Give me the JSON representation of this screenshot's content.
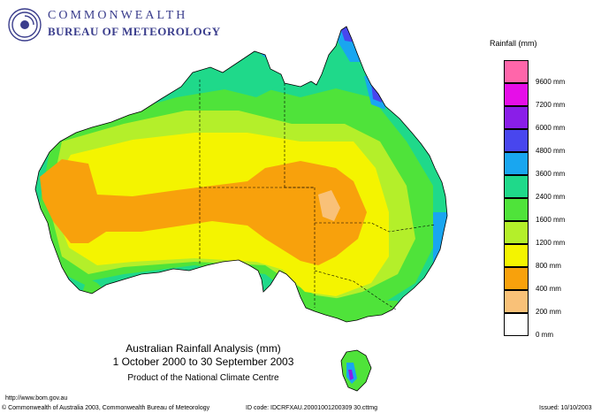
{
  "header": {
    "org_line1": "COMMONWEALTH",
    "org_line2": "BUREAU OF METEOROLOGY",
    "logo_icon": "bom-swirl-logo-icon"
  },
  "map": {
    "title_line1": "Australian Rainfall Analysis (mm)",
    "title_line2": "1 October 2000 to 30 September 2003",
    "credit": "Product of the National Climate Centre",
    "colors": {
      "ocean": "#ffffff",
      "border": "#000000",
      "r0": "#ffffff",
      "r200": "#f9c178",
      "r400": "#f8a10c",
      "r800": "#f4f400",
      "r1200": "#b4ef2a",
      "r1600": "#4fe33a",
      "r2400": "#1fd98a",
      "r3600": "#19a6f0",
      "r4800": "#4846ee",
      "r6000": "#8a1ee8",
      "r7200": "#e60ee8",
      "r9600": "#ff66aa"
    }
  },
  "legend": {
    "title": "Rainfall (mm)",
    "items": [
      {
        "label": "9600 mm",
        "color": "#ff66aa"
      },
      {
        "label": "7200 mm",
        "color": "#e60ee8"
      },
      {
        "label": "6000 mm",
        "color": "#8a1ee8"
      },
      {
        "label": "4800 mm",
        "color": "#4846ee"
      },
      {
        "label": "3600 mm",
        "color": "#19a6f0"
      },
      {
        "label": "2400 mm",
        "color": "#1fd98a"
      },
      {
        "label": "1600 mm",
        "color": "#4fe33a"
      },
      {
        "label": "1200 mm",
        "color": "#b4ef2a"
      },
      {
        "label": "800 mm",
        "color": "#f4f400"
      },
      {
        "label": "400 mm",
        "color": "#f8a10c"
      },
      {
        "label": "200 mm",
        "color": "#f9c178"
      },
      {
        "label": "0 mm",
        "color": "#ffffff"
      }
    ]
  },
  "footer": {
    "url": "http://www.bom.gov.au",
    "copyright": "© Commonwealth of Australia 2003, Commonwealth Bureau of Meteorology",
    "id_code": "ID code: IDCRFXAU.20001001200309 30.cttmg",
    "issued": "Issued: 10/10/2003"
  }
}
